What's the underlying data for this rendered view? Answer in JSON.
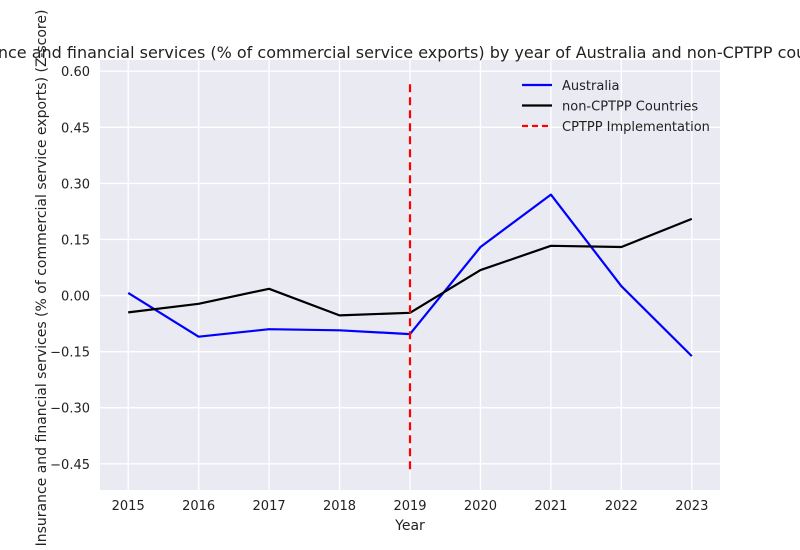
{
  "chart_data": {
    "type": "line",
    "title": "Insurance and financial services (% of commercial service exports) by year of Australia and non-CPTPP countries",
    "xlabel": "Year",
    "ylabel": "Insurance and financial services (% of commercial service exports) (Z-score)",
    "x": [
      2015,
      2016,
      2017,
      2018,
      2019,
      2020,
      2021,
      2022,
      2023
    ],
    "x_tick_labels": [
      "2015",
      "2016",
      "2017",
      "2018",
      "2019",
      "2020",
      "2021",
      "2022",
      "2023"
    ],
    "y_ticks": [
      -0.45,
      -0.3,
      -0.15,
      0.0,
      0.15,
      0.3,
      0.45,
      0.6
    ],
    "y_tick_labels": [
      "−0.45",
      "−0.30",
      "−0.15",
      "0.00",
      "0.15",
      "0.30",
      "0.45",
      "0.60"
    ],
    "xlim": [
      2014.6,
      2023.4
    ],
    "ylim": [
      -0.52,
      0.63
    ],
    "grid": true,
    "legend_position": "top-right",
    "series": [
      {
        "name": "Australia",
        "color": "#0000ff",
        "style": "solid",
        "values": [
          0.007,
          -0.11,
          -0.09,
          -0.093,
          -0.103,
          0.13,
          0.27,
          0.025,
          -0.162
        ]
      },
      {
        "name": "non-CPTPP Countries",
        "color": "#000000",
        "style": "solid",
        "values": [
          -0.045,
          -0.022,
          0.018,
          -0.053,
          -0.046,
          0.068,
          0.133,
          0.13,
          0.205
        ]
      }
    ],
    "annotations": [
      {
        "name": "CPTPP Implementation",
        "type": "vline",
        "x": 2019,
        "y_range": [
          -0.465,
          0.565
        ],
        "color": "#ff0000",
        "style": "dashed"
      }
    ]
  }
}
